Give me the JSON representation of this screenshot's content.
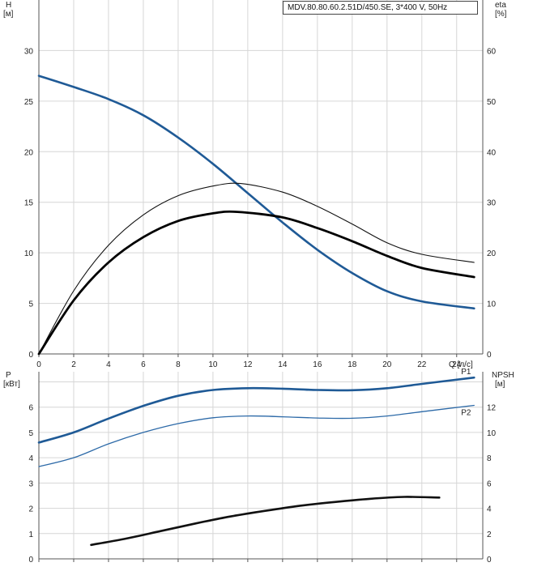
{
  "chart_data": [
    {
      "type": "line",
      "title": "MDV.80.80.60.2.51D/450.SE, 3*400 V, 50Hz",
      "xlabel": "Q [л/с]",
      "ylabel": {
        "name": "H",
        "unit": "[м]"
      },
      "y2label": {
        "name": "eta",
        "unit": "[%]"
      },
      "xlim": [
        0,
        25.5
      ],
      "ylim": [
        0,
        35
      ],
      "y2lim": [
        0,
        70
      ],
      "xticks": [
        0,
        2,
        4,
        6,
        8,
        10,
        12,
        14,
        16,
        18,
        20,
        22,
        24
      ],
      "yticks": [
        0,
        5,
        10,
        15,
        20,
        25,
        30
      ],
      "y2ticks": [
        0,
        10,
        20,
        30,
        40,
        50,
        60
      ],
      "grid": true,
      "series": [
        {
          "name": "",
          "axis": "left",
          "color": "#1f5a96",
          "x": [
            0,
            2,
            4,
            6,
            8,
            10,
            12,
            14,
            16,
            18,
            20,
            22,
            25
          ],
          "y": [
            27.5,
            26.4,
            25.2,
            23.6,
            21.4,
            18.8,
            15.9,
            13.0,
            10.3,
            8.0,
            6.2,
            5.2,
            4.5
          ]
        },
        {
          "name": "",
          "axis": "right",
          "color": "#111111",
          "x": [
            0,
            2,
            4,
            6,
            8,
            10,
            11.6,
            14,
            16,
            18,
            20,
            22,
            25
          ],
          "y": [
            0,
            12.5,
            21.5,
            27.5,
            31.3,
            33.2,
            33.7,
            32.0,
            29.2,
            25.7,
            22.0,
            19.7,
            18.1
          ]
        },
        {
          "name": "",
          "axis": "right",
          "color": "#000000",
          "x": [
            0,
            2,
            4,
            6,
            8,
            10,
            11.4,
            14,
            16,
            18,
            20,
            22,
            25
          ],
          "y": [
            0,
            10.6,
            18.1,
            23.1,
            26.3,
            27.8,
            28.1,
            27.0,
            24.9,
            22.3,
            19.4,
            17.0,
            15.2
          ]
        }
      ]
    },
    {
      "type": "line",
      "ylabel": {
        "name": "P",
        "unit": "[кВт]"
      },
      "y2label": {
        "name": "NPSH",
        "unit": "[м]"
      },
      "xlim": [
        0,
        25.5
      ],
      "ylim": [
        0,
        7.4
      ],
      "y2lim": [
        0,
        14.8
      ],
      "yticks": [
        0,
        1,
        2,
        3,
        4,
        5,
        6
      ],
      "y2ticks": [
        0,
        2,
        4,
        6,
        8,
        10,
        12
      ],
      "grid": true,
      "series": [
        {
          "name": "P1",
          "axis": "left",
          "color": "#1f5a96",
          "label_color": "#2d6aa8",
          "x": [
            0,
            2,
            4,
            6,
            8,
            10,
            12,
            14,
            16,
            18,
            20,
            22,
            25
          ],
          "y": [
            4.6,
            5.0,
            5.55,
            6.05,
            6.45,
            6.68,
            6.75,
            6.73,
            6.68,
            6.67,
            6.75,
            6.92,
            7.17
          ]
        },
        {
          "name": "P2",
          "axis": "left",
          "color": "#2d6aa8",
          "label_color": "#2d6aa8",
          "x": [
            0,
            2,
            4,
            6,
            8,
            10,
            12,
            14,
            16,
            18,
            20,
            22,
            25
          ],
          "y": [
            3.65,
            4.0,
            4.55,
            5.0,
            5.35,
            5.58,
            5.65,
            5.62,
            5.57,
            5.56,
            5.65,
            5.82,
            6.07
          ]
        },
        {
          "name": "",
          "axis": "right",
          "color": "#111111",
          "x": [
            3,
            5,
            7,
            9,
            11,
            13,
            15,
            17,
            19,
            21,
            23
          ],
          "y": [
            1.1,
            1.6,
            2.2,
            2.8,
            3.35,
            3.8,
            4.2,
            4.5,
            4.75,
            4.9,
            4.85
          ]
        }
      ]
    }
  ]
}
